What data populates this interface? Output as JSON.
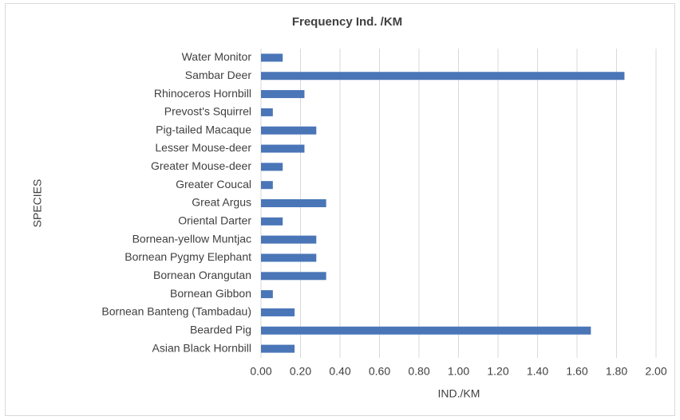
{
  "chart_data": {
    "type": "barh",
    "title": "Frequency Ind. /KM",
    "x_label": "IND./KM",
    "y_label": "SPECIES",
    "categories": [
      "Water Monitor",
      "Sambar Deer",
      "Rhinoceros Hornbill",
      "Prevost's Squirrel",
      "Pig-tailed Macaque",
      "Lesser Mouse-deer",
      "Greater Mouse-deer",
      "Greater Coucal",
      "Great Argus",
      "Oriental Darter",
      "Bornean-yellow Muntjac",
      "Bornean Pygmy Elephant",
      "Bornean Orangutan",
      "Bornean Gibbon",
      "Bornean Banteng (Tambadau)",
      "Bearded Pig",
      "Asian Black Hornbill"
    ],
    "values": [
      0.11,
      1.84,
      0.22,
      0.06,
      0.28,
      0.22,
      0.11,
      0.06,
      0.33,
      0.11,
      0.28,
      0.28,
      0.33,
      0.06,
      0.17,
      1.67,
      0.17
    ],
    "color": "#4a76b8",
    "xlim": [
      0,
      2
    ],
    "xticks": [
      {
        "value": 0,
        "label": "0.00"
      },
      {
        "value": 0.2,
        "label": "0.20"
      },
      {
        "value": 0.4,
        "label": "0.40"
      },
      {
        "value": 0.6,
        "label": "0.60"
      },
      {
        "value": 0.8,
        "label": "0.80"
      },
      {
        "value": 1,
        "label": "1.00"
      },
      {
        "value": 1.2,
        "label": "1.20"
      },
      {
        "value": 1.4,
        "label": "1.40"
      },
      {
        "value": 1.6,
        "label": "1.60"
      },
      {
        "value": 1.8,
        "label": "1.80"
      },
      {
        "value": 2,
        "label": "2.00"
      }
    ],
    "grid": true
  }
}
